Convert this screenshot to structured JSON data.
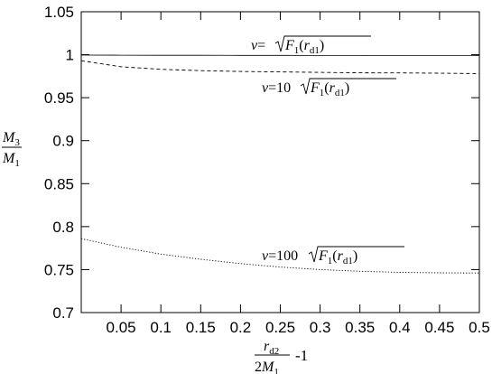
{
  "chart_data": {
    "type": "line",
    "title": "",
    "xlim": [
      0,
      0.5
    ],
    "ylim": [
      0.7,
      1.05
    ],
    "x_ticks": [
      "0.05",
      "0.1",
      "0.15",
      "0.2",
      "0.25",
      "0.3",
      "0.35",
      "0.4",
      "0.45",
      "0.5"
    ],
    "y_ticks": [
      "0.7",
      "0.75",
      "0.8",
      "0.85",
      "0.9",
      "0.95",
      "1",
      "1.05"
    ],
    "xlabel": {
      "num": "r",
      "num_sub": "d2",
      "den_coef": "2",
      "den": "M",
      "den_sub": "1",
      "suffix": "-1"
    },
    "ylabel": {
      "num": "M",
      "num_sub": "3",
      "den": "M",
      "den_sub": "1"
    },
    "grid": false,
    "series": [
      {
        "style": "solid",
        "x": [
          0,
          0.05,
          0.1,
          0.15,
          0.2,
          0.25,
          0.3,
          0.35,
          0.4,
          0.45,
          0.5
        ],
        "y": [
          0.9995,
          0.9994,
          0.9993,
          0.9993,
          0.9992,
          0.9992,
          0.9991,
          0.9991,
          0.999,
          0.999,
          0.999
        ],
        "annotation": {
          "coef": "",
          "var": "v",
          "eq": "=",
          "F": "F",
          "F_sub": "1",
          "r": "r",
          "r_sub": "d1"
        }
      },
      {
        "style": "dashed",
        "x": [
          0,
          0.05,
          0.1,
          0.15,
          0.2,
          0.25,
          0.3,
          0.35,
          0.4,
          0.45,
          0.5
        ],
        "y": [
          0.993,
          0.986,
          0.983,
          0.9815,
          0.9805,
          0.98,
          0.9795,
          0.979,
          0.9788,
          0.9785,
          0.978
        ],
        "annotation": {
          "coef": "10",
          "var": "v",
          "eq": "=",
          "F": "F",
          "F_sub": "1",
          "r": "r",
          "r_sub": "d1"
        }
      },
      {
        "style": "dotted",
        "x": [
          0,
          0.05,
          0.1,
          0.15,
          0.2,
          0.25,
          0.3,
          0.35,
          0.4,
          0.45,
          0.5
        ],
        "y": [
          0.786,
          0.776,
          0.768,
          0.762,
          0.757,
          0.753,
          0.75,
          0.748,
          0.7468,
          0.7462,
          0.746
        ],
        "annotation": {
          "coef": "100",
          "var": "v",
          "eq": "=",
          "F": "F",
          "F_sub": "1",
          "r": "r",
          "r_sub": "d1"
        }
      }
    ]
  }
}
